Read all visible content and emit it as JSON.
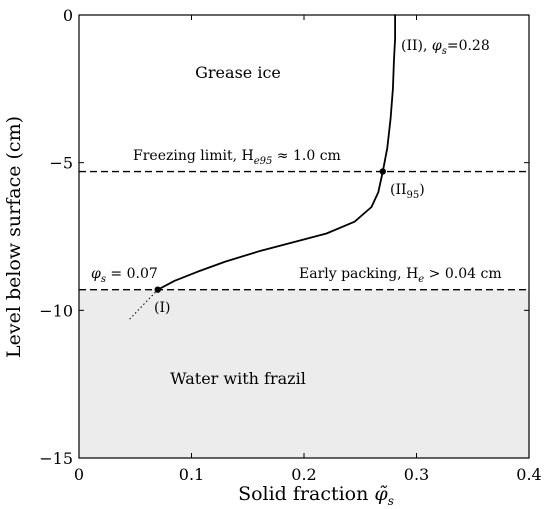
{
  "chart_data": {
    "type": "line",
    "xlabel": "Solid fraction",
    "xlabel_symbol": "φ̃",
    "xlabel_sub": "s",
    "ylabel": "Level below surface (cm)",
    "xlim": [
      0,
      0.4
    ],
    "ylim": [
      -15,
      0
    ],
    "xticks": [
      0,
      0.1,
      0.2,
      0.3,
      0.4
    ],
    "xtick_labels": [
      "0",
      "0.1",
      "0.2",
      "0.3",
      "0.4"
    ],
    "yticks": [
      0,
      -5,
      -10,
      -15
    ],
    "ytick_labels": [
      "0",
      "−5",
      "−10",
      "−15"
    ],
    "grid": false,
    "series": [
      {
        "x": [
          0.07,
          0.085,
          0.105,
          0.13,
          0.16,
          0.19,
          0.22,
          0.245,
          0.26,
          0.266,
          0.27,
          0.274,
          0.277,
          0.279,
          0.28,
          0.281,
          0.281,
          0.281
        ],
        "y": [
          -9.3,
          -9.0,
          -8.7,
          -8.35,
          -8.0,
          -7.7,
          -7.4,
          -7.0,
          -6.5,
          -6.0,
          -5.3,
          -4.5,
          -3.5,
          -2.5,
          -1.5,
          -0.8,
          -0.3,
          0
        ],
        "color": "#000000"
      }
    ],
    "extrapolation": {
      "x": [
        0.045,
        0.07
      ],
      "y": [
        -10.3,
        -9.3
      ],
      "style": "dotted"
    },
    "hlines": [
      {
        "y": -5.3,
        "style": "dashed",
        "label": "Freezing limit, H",
        "label_sub": "e95",
        "label_tail": " ≈ 1.0 cm"
      },
      {
        "y": -9.3,
        "style": "dashed",
        "label": "Early packing, H",
        "label_sub": "e",
        "label_tail": " > 0.04 cm"
      }
    ],
    "shaded_region": {
      "y_from": -15,
      "y_to": -9.3,
      "color": "#ececec"
    },
    "points": [
      {
        "x": 0.07,
        "y": -9.3,
        "label": "(I)"
      },
      {
        "x": 0.27,
        "y": -5.3,
        "label": "(II",
        "label_sub": "95",
        "label_tail": ")"
      }
    ],
    "annotations": {
      "top": {
        "pre": "(II), ",
        "sym": "φ",
        "sub": "s",
        "tail": "=0.28"
      },
      "left": {
        "sym": "φ",
        "sub": "s",
        "tail": " = 0.07"
      }
    },
    "regions": {
      "upper": "Grease ice",
      "lower": "Water with frazil"
    },
    "colors": {
      "shade": "#ececec",
      "line": "#000000"
    }
  }
}
